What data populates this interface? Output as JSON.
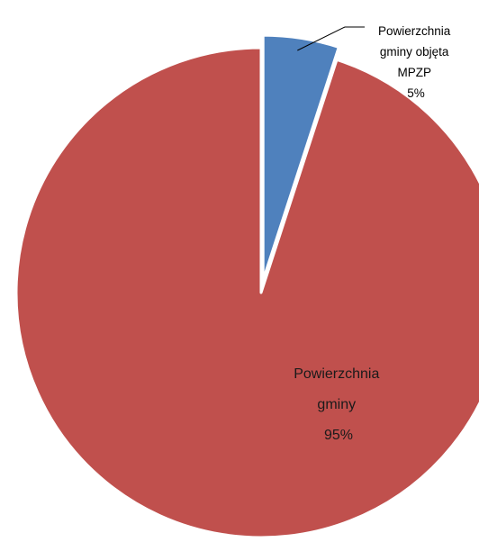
{
  "chart_data": {
    "type": "pie",
    "exploded": true,
    "slices": [
      {
        "label_lines": [
          "Powierzchnia",
          "gminy objęta",
          "MPZP"
        ],
        "percent_label": "5%",
        "value": 5,
        "color": "#4f81bd"
      },
      {
        "label_lines": [
          "Powierzchnia",
          "gminy"
        ],
        "percent_label": "95%",
        "value": 95,
        "color": "#c0504d"
      }
    ]
  }
}
